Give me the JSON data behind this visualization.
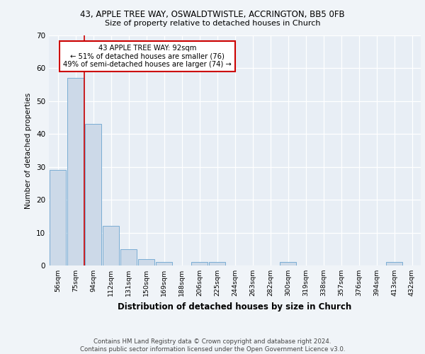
{
  "title1": "43, APPLE TREE WAY, OSWALDTWISTLE, ACCRINGTON, BB5 0FB",
  "title2": "Size of property relative to detached houses in Church",
  "xlabel": "Distribution of detached houses by size in Church",
  "ylabel": "Number of detached properties",
  "categories": [
    "56sqm",
    "75sqm",
    "94sqm",
    "112sqm",
    "131sqm",
    "150sqm",
    "169sqm",
    "188sqm",
    "206sqm",
    "225sqm",
    "244sqm",
    "263sqm",
    "282sqm",
    "300sqm",
    "319sqm",
    "338sqm",
    "357sqm",
    "376sqm",
    "394sqm",
    "413sqm",
    "432sqm"
  ],
  "values": [
    29,
    57,
    43,
    12,
    5,
    2,
    1,
    0,
    1,
    1,
    0,
    0,
    0,
    1,
    0,
    0,
    0,
    0,
    0,
    1,
    0
  ],
  "bar_color": "#ccd9e8",
  "bar_edge_color": "#7aadd4",
  "property_line_color": "#cc0000",
  "annotation_text": "43 APPLE TREE WAY: 92sqm\n← 51% of detached houses are smaller (76)\n49% of semi-detached houses are larger (74) →",
  "annotation_box_color": "#ffffff",
  "annotation_box_edge": "#cc0000",
  "ylim": [
    0,
    70
  ],
  "yticks": [
    0,
    10,
    20,
    30,
    40,
    50,
    60,
    70
  ],
  "footer": "Contains HM Land Registry data © Crown copyright and database right 2024.\nContains public sector information licensed under the Open Government Licence v3.0.",
  "bg_color": "#f0f4f8",
  "plot_bg_color": "#e8eef5"
}
